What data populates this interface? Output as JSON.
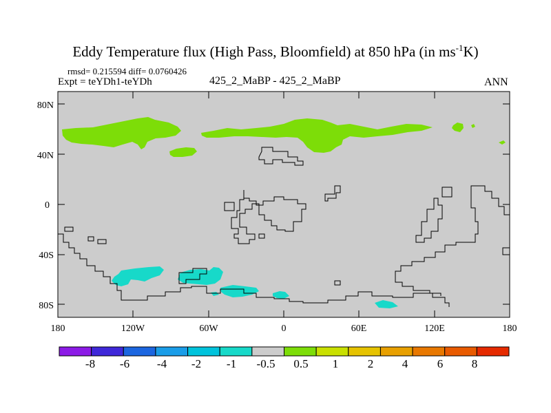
{
  "title": {
    "main": "Eddy Temperature flux (High Pass, Bloomfield) at 850 hPa (in ms",
    "sup": "-1",
    "end": "K)"
  },
  "stats_line": "rmsd= 0.215594  diff= 0.0760426",
  "expt_line": "Expt = teYDh1-teYDh",
  "cases_line": "425_2_MaBP - 425_2_MaBP",
  "season": "ANN",
  "axes": {
    "x_ticks": [
      "180",
      "120W",
      "60W",
      "0",
      "60E",
      "120E",
      "180"
    ],
    "y_ticks": [
      "80N",
      "40N",
      "0",
      "40S",
      "80S"
    ]
  },
  "colorbar": {
    "colors": [
      "#8c1be6",
      "#3f28d9",
      "#1c66e0",
      "#1a9de8",
      "#00c3dc",
      "#17d9c9",
      "#cccccc",
      "#7ddd08",
      "#c9e000",
      "#e6c300",
      "#e8a000",
      "#e87800",
      "#e85a00",
      "#e52a00"
    ],
    "labels": [
      "-8",
      "-6",
      "-4",
      "-2",
      "-1",
      "-0.5",
      "0.5",
      "1",
      "2",
      "4",
      "6",
      "8"
    ]
  },
  "map_colors": {
    "background": "#cccccc",
    "positive": "#7ddd08",
    "negative": "#17d9c9",
    "coast": "#000000"
  }
}
